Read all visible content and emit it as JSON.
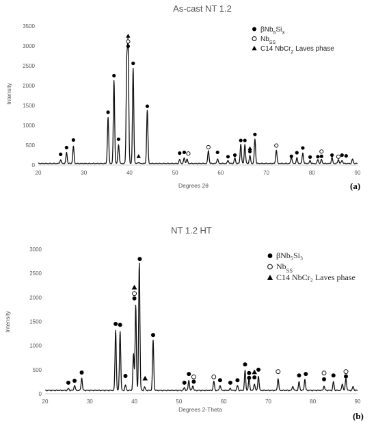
{
  "chart_data": [
    {
      "type": "line",
      "panel": "(a)",
      "title": "As-cast NT 1.2",
      "xlabel": "Degrees 2θ",
      "ylabel": "Intensity",
      "xlim": [
        20,
        90
      ],
      "ylim": [
        0,
        3500
      ],
      "xticks": [
        "20",
        "30",
        "40",
        "50",
        "60",
        "70",
        "80",
        "90"
      ],
      "yticks": [
        "0",
        "500",
        "1000",
        "1500",
        "2000",
        "2500",
        "3000",
        "3500"
      ],
      "grid": false,
      "legend_position": "top-right",
      "legend": [
        {
          "symbol": "filled-circle",
          "parts": [
            {
              "t": "βNb"
            },
            {
              "t": "5",
              "sub": true
            },
            {
              "t": "Si"
            },
            {
              "t": "3",
              "sub": true
            }
          ]
        },
        {
          "symbol": "open-circle",
          "parts": [
            {
              "t": "Nb"
            },
            {
              "t": "SS",
              "sub": true
            }
          ]
        },
        {
          "symbol": "filled-triangle",
          "parts": [
            {
              "t": "C14 NbCr"
            },
            {
              "t": "2",
              "sub": true
            },
            {
              "t": " Laves phase"
            }
          ]
        }
      ],
      "baseline": 40,
      "peaks": [
        {
          "x": 24.9,
          "y": 130
        },
        {
          "x": 26.2,
          "y": 320
        },
        {
          "x": 27.7,
          "y": 470
        },
        {
          "x": 35.3,
          "y": 1200
        },
        {
          "x": 36.6,
          "y": 2130
        },
        {
          "x": 37.6,
          "y": 520
        },
        {
          "x": 39.4,
          "y": 2450
        },
        {
          "x": 39.7,
          "y": 2880
        },
        {
          "x": 40.8,
          "y": 2430
        },
        {
          "x": 42.0,
          "y": 70
        },
        {
          "x": 43.9,
          "y": 1380
        },
        {
          "x": 51.0,
          "y": 140
        },
        {
          "x": 52.0,
          "y": 180
        },
        {
          "x": 52.6,
          "y": 150
        },
        {
          "x": 57.3,
          "y": 370
        },
        {
          "x": 59.3,
          "y": 160
        },
        {
          "x": 61.6,
          "y": 120
        },
        {
          "x": 63.1,
          "y": 180
        },
        {
          "x": 64.4,
          "y": 530
        },
        {
          "x": 65.3,
          "y": 520
        },
        {
          "x": 66.4,
          "y": 240
        },
        {
          "x": 67.5,
          "y": 650
        },
        {
          "x": 72.2,
          "y": 380
        },
        {
          "x": 75.5,
          "y": 200
        },
        {
          "x": 76.7,
          "y": 180
        },
        {
          "x": 78.0,
          "y": 310
        },
        {
          "x": 79.6,
          "y": 110
        },
        {
          "x": 81.3,
          "y": 140
        },
        {
          "x": 82.1,
          "y": 140
        },
        {
          "x": 84.4,
          "y": 190
        },
        {
          "x": 85.8,
          "y": 140
        },
        {
          "x": 86.6,
          "y": 120
        },
        {
          "x": 88.9,
          "y": 150
        }
      ],
      "markers": [
        {
          "x": 24.9,
          "y": 270,
          "s": "filled-circle"
        },
        {
          "x": 26.2,
          "y": 440,
          "s": "filled-circle"
        },
        {
          "x": 27.7,
          "y": 630,
          "s": "filled-circle"
        },
        {
          "x": 35.3,
          "y": 1330,
          "s": "filled-circle"
        },
        {
          "x": 36.6,
          "y": 2250,
          "s": "filled-circle"
        },
        {
          "x": 37.6,
          "y": 650,
          "s": "filled-circle"
        },
        {
          "x": 39.7,
          "y": 2990,
          "s": "filled-circle"
        },
        {
          "x": 39.7,
          "y": 3110,
          "s": "open-circle"
        },
        {
          "x": 39.7,
          "y": 3250,
          "s": "filled-triangle"
        },
        {
          "x": 40.8,
          "y": 2560,
          "s": "filled-circle"
        },
        {
          "x": 42.0,
          "y": 220,
          "s": "filled-triangle"
        },
        {
          "x": 43.9,
          "y": 1480,
          "s": "filled-circle"
        },
        {
          "x": 51.0,
          "y": 300,
          "s": "filled-circle"
        },
        {
          "x": 52.0,
          "y": 320,
          "s": "filled-circle"
        },
        {
          "x": 52.9,
          "y": 290,
          "s": "open-circle"
        },
        {
          "x": 57.3,
          "y": 450,
          "s": "open-circle"
        },
        {
          "x": 59.3,
          "y": 320,
          "s": "filled-circle"
        },
        {
          "x": 61.6,
          "y": 210,
          "s": "filled-circle"
        },
        {
          "x": 63.1,
          "y": 250,
          "s": "filled-circle"
        },
        {
          "x": 64.4,
          "y": 620,
          "s": "filled-circle"
        },
        {
          "x": 65.3,
          "y": 620,
          "s": "filled-circle"
        },
        {
          "x": 66.4,
          "y": 420,
          "s": "filled-triangle"
        },
        {
          "x": 66.4,
          "y": 340,
          "s": "filled-circle"
        },
        {
          "x": 67.5,
          "y": 770,
          "s": "filled-circle"
        },
        {
          "x": 72.2,
          "y": 490,
          "s": "open-circle"
        },
        {
          "x": 75.5,
          "y": 220,
          "s": "filled-circle"
        },
        {
          "x": 76.7,
          "y": 310,
          "s": "filled-circle"
        },
        {
          "x": 78.0,
          "y": 430,
          "s": "filled-circle"
        },
        {
          "x": 79.6,
          "y": 200,
          "s": "filled-circle"
        },
        {
          "x": 81.3,
          "y": 210,
          "s": "filled-circle"
        },
        {
          "x": 82.1,
          "y": 340,
          "s": "open-circle"
        },
        {
          "x": 82.1,
          "y": 220,
          "s": "filled-circle"
        },
        {
          "x": 84.4,
          "y": 250,
          "s": "filled-circle"
        },
        {
          "x": 85.8,
          "y": 210,
          "s": "open-circle"
        },
        {
          "x": 86.6,
          "y": 250,
          "s": "filled-circle"
        },
        {
          "x": 87.5,
          "y": 230,
          "s": "filled-circle"
        }
      ]
    },
    {
      "type": "line",
      "panel": "(b)",
      "title": "NT 1.2 HT",
      "xlabel": "Degrees 2-Theta",
      "ylabel": "Intensity",
      "xlim": [
        20,
        90
      ],
      "ylim": [
        0,
        3000
      ],
      "xticks": [
        "20",
        "30",
        "40",
        "50",
        "60",
        "70",
        "80",
        "90"
      ],
      "yticks": [
        "0",
        "500",
        "1000",
        "1500",
        "2000",
        "2500",
        "3000"
      ],
      "grid": false,
      "legend_position": "top-right",
      "legend": [
        {
          "symbol": "filled-circle",
          "parts": [
            {
              "t": "βNb₅Si₃"
            }
          ]
        },
        {
          "symbol": "open-circle",
          "parts": [
            {
              "t": "Nb"
            },
            {
              "t": "SS",
              "sub": true
            }
          ]
        },
        {
          "symbol": "filled-triangle",
          "parts": [
            {
              "t": "C14 NbCr₂ Laves phase"
            }
          ]
        }
      ],
      "baseline": 70,
      "peaks": [
        {
          "x": 25.2,
          "y": 110
        },
        {
          "x": 26.6,
          "y": 180
        },
        {
          "x": 28.2,
          "y": 330
        },
        {
          "x": 35.8,
          "y": 1320
        },
        {
          "x": 36.8,
          "y": 1300
        },
        {
          "x": 38.0,
          "y": 180
        },
        {
          "x": 39.8,
          "y": 820
        },
        {
          "x": 40.3,
          "y": 1840
        },
        {
          "x": 41.1,
          "y": 2720
        },
        {
          "x": 42.3,
          "y": 140
        },
        {
          "x": 44.2,
          "y": 1110
        },
        {
          "x": 51.2,
          "y": 130
        },
        {
          "x": 52.2,
          "y": 280
        },
        {
          "x": 53.1,
          "y": 170
        },
        {
          "x": 57.8,
          "y": 260
        },
        {
          "x": 59.2,
          "y": 180
        },
        {
          "x": 61.5,
          "y": 110
        },
        {
          "x": 63.1,
          "y": 170
        },
        {
          "x": 64.8,
          "y": 480
        },
        {
          "x": 65.7,
          "y": 330
        },
        {
          "x": 66.9,
          "y": 210
        },
        {
          "x": 67.8,
          "y": 370
        },
        {
          "x": 72.2,
          "y": 320
        },
        {
          "x": 75.5,
          "y": 160
        },
        {
          "x": 76.9,
          "y": 250
        },
        {
          "x": 78.2,
          "y": 300
        },
        {
          "x": 82.5,
          "y": 160
        },
        {
          "x": 84.6,
          "y": 250
        },
        {
          "x": 86.6,
          "y": 210
        },
        {
          "x": 87.4,
          "y": 320
        },
        {
          "x": 89.0,
          "y": 150
        }
      ],
      "markers": [
        {
          "x": 25.2,
          "y": 230,
          "s": "filled-circle"
        },
        {
          "x": 26.6,
          "y": 270,
          "s": "filled-circle"
        },
        {
          "x": 28.2,
          "y": 440,
          "s": "filled-circle"
        },
        {
          "x": 35.8,
          "y": 1450,
          "s": "filled-circle"
        },
        {
          "x": 36.8,
          "y": 1430,
          "s": "filled-circle"
        },
        {
          "x": 38.0,
          "y": 370,
          "s": "filled-circle"
        },
        {
          "x": 40.0,
          "y": 1980,
          "s": "filled-circle"
        },
        {
          "x": 40.0,
          "y": 2080,
          "s": "open-circle"
        },
        {
          "x": 40.0,
          "y": 2210,
          "s": "filled-triangle"
        },
        {
          "x": 41.2,
          "y": 2800,
          "s": "filled-circle"
        },
        {
          "x": 42.4,
          "y": 320,
          "s": "filled-triangle"
        },
        {
          "x": 44.2,
          "y": 1220,
          "s": "filled-circle"
        },
        {
          "x": 51.2,
          "y": 230,
          "s": "filled-circle"
        },
        {
          "x": 52.2,
          "y": 410,
          "s": "filled-circle"
        },
        {
          "x": 53.3,
          "y": 350,
          "s": "open-circle"
        },
        {
          "x": 53.3,
          "y": 250,
          "s": "filled-circle"
        },
        {
          "x": 57.8,
          "y": 350,
          "s": "open-circle"
        },
        {
          "x": 59.2,
          "y": 280,
          "s": "filled-circle"
        },
        {
          "x": 61.5,
          "y": 230,
          "s": "filled-circle"
        },
        {
          "x": 63.1,
          "y": 280,
          "s": "filled-circle"
        },
        {
          "x": 64.8,
          "y": 610,
          "s": "filled-circle"
        },
        {
          "x": 65.7,
          "y": 430,
          "s": "filled-circle"
        },
        {
          "x": 65.7,
          "y": 330,
          "s": "filled-circle"
        },
        {
          "x": 66.9,
          "y": 450,
          "s": "filled-triangle"
        },
        {
          "x": 66.9,
          "y": 340,
          "s": "filled-circle"
        },
        {
          "x": 67.8,
          "y": 500,
          "s": "filled-circle"
        },
        {
          "x": 72.2,
          "y": 460,
          "s": "open-circle"
        },
        {
          "x": 76.9,
          "y": 380,
          "s": "filled-circle"
        },
        {
          "x": 78.4,
          "y": 410,
          "s": "filled-circle"
        },
        {
          "x": 82.5,
          "y": 430,
          "s": "open-circle"
        },
        {
          "x": 82.5,
          "y": 300,
          "s": "filled-circle"
        },
        {
          "x": 84.6,
          "y": 380,
          "s": "filled-circle"
        },
        {
          "x": 87.4,
          "y": 460,
          "s": "open-circle"
        },
        {
          "x": 87.4,
          "y": 360,
          "s": "filled-circle"
        }
      ]
    }
  ]
}
